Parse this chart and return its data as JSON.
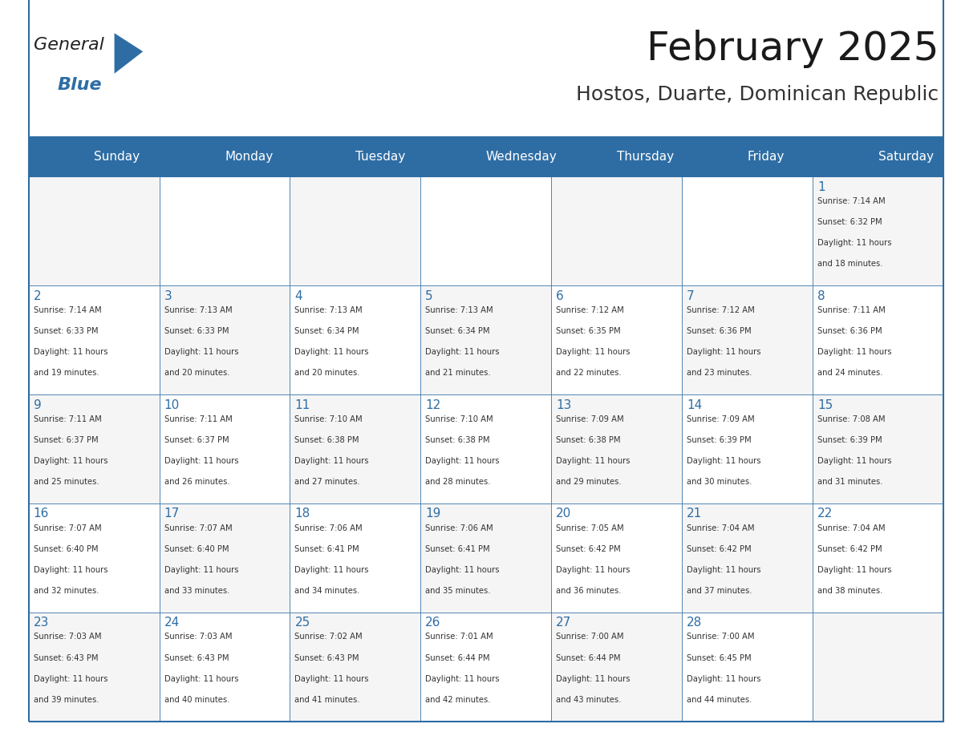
{
  "title": "February 2025",
  "subtitle": "Hostos, Duarte, Dominican Republic",
  "header_bg": "#2E6DA4",
  "header_text": "#FFFFFF",
  "cell_bg": "#F2F2F2",
  "cell_bg_alt": "#FFFFFF",
  "border_color": "#2E6DA4",
  "text_color": "#333333",
  "day_number_color": "#2E6DA4",
  "days_of_week": [
    "Sunday",
    "Monday",
    "Tuesday",
    "Wednesday",
    "Thursday",
    "Friday",
    "Saturday"
  ],
  "calendar": [
    [
      null,
      null,
      null,
      null,
      null,
      null,
      1
    ],
    [
      2,
      3,
      4,
      5,
      6,
      7,
      8
    ],
    [
      9,
      10,
      11,
      12,
      13,
      14,
      15
    ],
    [
      16,
      17,
      18,
      19,
      20,
      21,
      22
    ],
    [
      23,
      24,
      25,
      26,
      27,
      28,
      null
    ]
  ],
  "cell_data": {
    "1": {
      "sunrise": "7:14 AM",
      "sunset": "6:32 PM",
      "daylight": "11 hours and 18 minutes."
    },
    "2": {
      "sunrise": "7:14 AM",
      "sunset": "6:33 PM",
      "daylight": "11 hours and 19 minutes."
    },
    "3": {
      "sunrise": "7:13 AM",
      "sunset": "6:33 PM",
      "daylight": "11 hours and 20 minutes."
    },
    "4": {
      "sunrise": "7:13 AM",
      "sunset": "6:34 PM",
      "daylight": "11 hours and 20 minutes."
    },
    "5": {
      "sunrise": "7:13 AM",
      "sunset": "6:34 PM",
      "daylight": "11 hours and 21 minutes."
    },
    "6": {
      "sunrise": "7:12 AM",
      "sunset": "6:35 PM",
      "daylight": "11 hours and 22 minutes."
    },
    "7": {
      "sunrise": "7:12 AM",
      "sunset": "6:36 PM",
      "daylight": "11 hours and 23 minutes."
    },
    "8": {
      "sunrise": "7:11 AM",
      "sunset": "6:36 PM",
      "daylight": "11 hours and 24 minutes."
    },
    "9": {
      "sunrise": "7:11 AM",
      "sunset": "6:37 PM",
      "daylight": "11 hours and 25 minutes."
    },
    "10": {
      "sunrise": "7:11 AM",
      "sunset": "6:37 PM",
      "daylight": "11 hours and 26 minutes."
    },
    "11": {
      "sunrise": "7:10 AM",
      "sunset": "6:38 PM",
      "daylight": "11 hours and 27 minutes."
    },
    "12": {
      "sunrise": "7:10 AM",
      "sunset": "6:38 PM",
      "daylight": "11 hours and 28 minutes."
    },
    "13": {
      "sunrise": "7:09 AM",
      "sunset": "6:38 PM",
      "daylight": "11 hours and 29 minutes."
    },
    "14": {
      "sunrise": "7:09 AM",
      "sunset": "6:39 PM",
      "daylight": "11 hours and 30 minutes."
    },
    "15": {
      "sunrise": "7:08 AM",
      "sunset": "6:39 PM",
      "daylight": "11 hours and 31 minutes."
    },
    "16": {
      "sunrise": "7:07 AM",
      "sunset": "6:40 PM",
      "daylight": "11 hours and 32 minutes."
    },
    "17": {
      "sunrise": "7:07 AM",
      "sunset": "6:40 PM",
      "daylight": "11 hours and 33 minutes."
    },
    "18": {
      "sunrise": "7:06 AM",
      "sunset": "6:41 PM",
      "daylight": "11 hours and 34 minutes."
    },
    "19": {
      "sunrise": "7:06 AM",
      "sunset": "6:41 PM",
      "daylight": "11 hours and 35 minutes."
    },
    "20": {
      "sunrise": "7:05 AM",
      "sunset": "6:42 PM",
      "daylight": "11 hours and 36 minutes."
    },
    "21": {
      "sunrise": "7:04 AM",
      "sunset": "6:42 PM",
      "daylight": "11 hours and 37 minutes."
    },
    "22": {
      "sunrise": "7:04 AM",
      "sunset": "6:42 PM",
      "daylight": "11 hours and 38 minutes."
    },
    "23": {
      "sunrise": "7:03 AM",
      "sunset": "6:43 PM",
      "daylight": "11 hours and 39 minutes."
    },
    "24": {
      "sunrise": "7:03 AM",
      "sunset": "6:43 PM",
      "daylight": "11 hours and 40 minutes."
    },
    "25": {
      "sunrise": "7:02 AM",
      "sunset": "6:43 PM",
      "daylight": "11 hours and 41 minutes."
    },
    "26": {
      "sunrise": "7:01 AM",
      "sunset": "6:44 PM",
      "daylight": "11 hours and 42 minutes."
    },
    "27": {
      "sunrise": "7:00 AM",
      "sunset": "6:44 PM",
      "daylight": "11 hours and 43 minutes."
    },
    "28": {
      "sunrise": "7:00 AM",
      "sunset": "6:45 PM",
      "daylight": "11 hours and 44 minutes."
    }
  },
  "logo_text_general": "General",
  "logo_text_blue": "Blue",
  "logo_color_general": "#222222",
  "logo_color_blue": "#2E6DA4",
  "logo_triangle_color": "#2E6DA4"
}
